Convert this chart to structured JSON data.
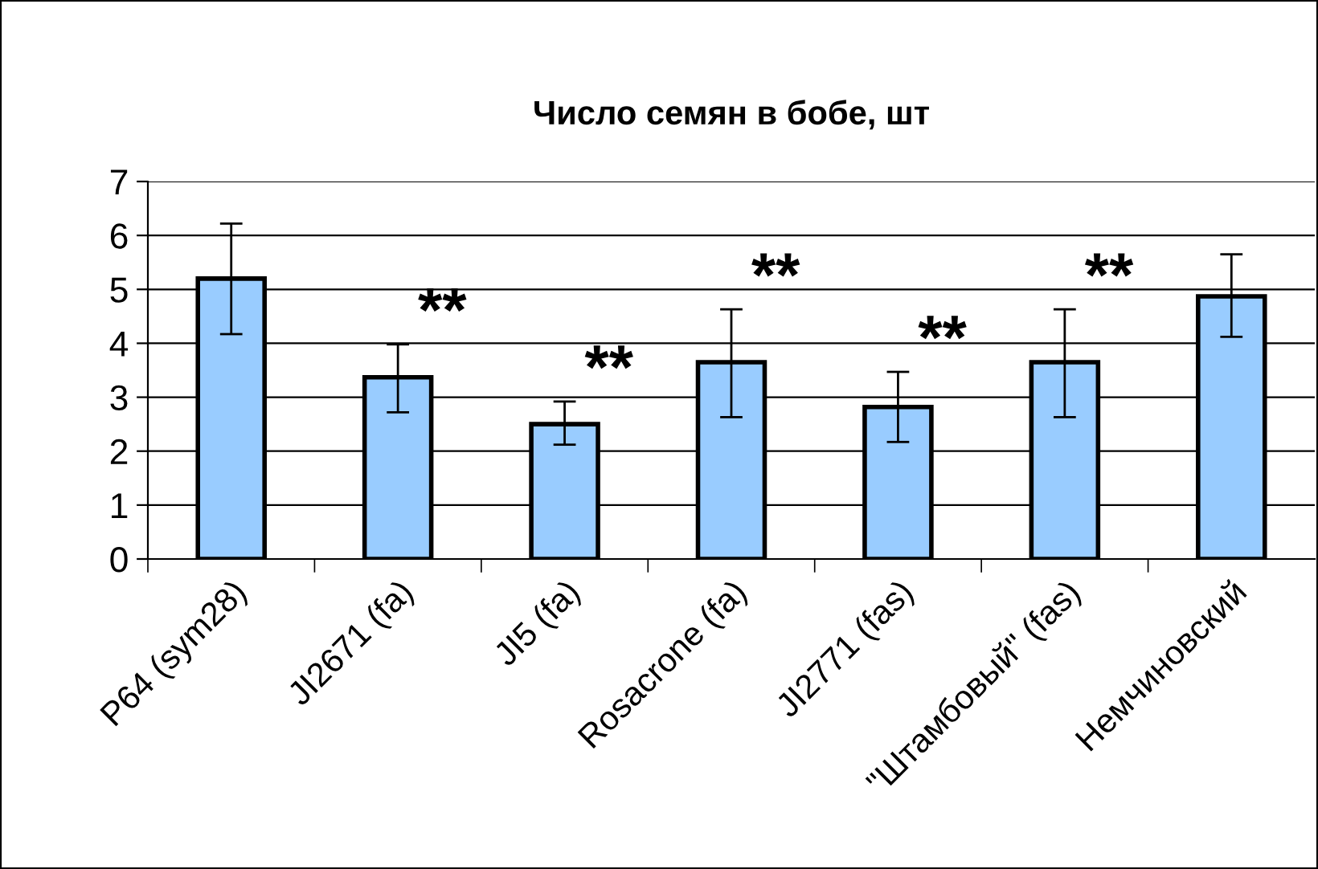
{
  "chart_data": {
    "type": "bar",
    "title": "Число семян в бобе, шт",
    "categories": [
      "P64 (sym28)",
      "JI2671 (fa)",
      "JI5 (fa)",
      "Rosacrone (fa)",
      "JI2771 (fas)",
      "\"Штамбовый\" (fas)",
      "Немчиновский"
    ],
    "values": [
      5.2,
      3.37,
      2.5,
      3.65,
      2.82,
      3.65,
      4.87
    ],
    "errors": [
      [
        4.17,
        6.22
      ],
      [
        2.72,
        3.98
      ],
      [
        2.12,
        2.92
      ],
      [
        2.63,
        4.63
      ],
      [
        2.17,
        3.47
      ],
      [
        2.63,
        4.63
      ],
      [
        4.12,
        5.65
      ]
    ],
    "color": "#99ccff",
    "ylim": [
      0,
      7
    ],
    "yticks": [
      0,
      1,
      2,
      3,
      4,
      5,
      6,
      7
    ],
    "grid": "y",
    "annotations": [
      {
        "text": "**",
        "x": "JI2671 (fa)",
        "y": 3.98
      },
      {
        "text": "**",
        "x": "JI5 (fa)",
        "y": 2.92
      },
      {
        "text": "**",
        "x": "Rosacrone (fa)",
        "y": 4.63
      },
      {
        "text": "**",
        "x": "JI2771 (fas)",
        "y": 3.47
      },
      {
        "text": "**",
        "x": "\"Штамбовый\" (fas)",
        "y": 4.63
      }
    ]
  }
}
